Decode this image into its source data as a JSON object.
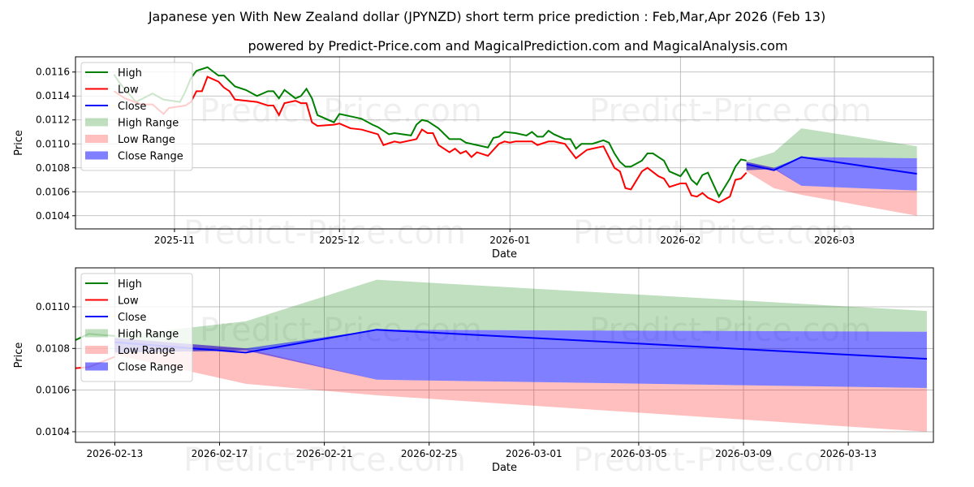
{
  "title": "Japanese yen With New Zealand dollar (JPYNZD) short term price prediction : Feb,Mar,Apr 2026 (Feb 13)",
  "subtitle": "powered by Predict-Price.com and MagicalPrediction.com and MagicalAnalysis.com",
  "watermark": "Predict-Price.com",
  "colors": {
    "high": "#008000",
    "low": "#ff0000",
    "close": "#0000ff",
    "high_range": "#008000",
    "low_range": "#ff0000",
    "close_range": "#0000ff"
  },
  "chart_data": [
    {
      "type": "line",
      "xlabel": "Date",
      "ylabel": "Price",
      "xlim": [
        "2025-10-14",
        "2026-03-19"
      ],
      "ylim": [
        0.01029,
        0.011727
      ],
      "xticks": [
        "2025-11-01",
        "2025-12-01",
        "2026-01-01",
        "2026-02-01",
        "2026-03-01"
      ],
      "xtick_labels": [
        "2025-11",
        "2025-12",
        "2026-01",
        "2026-02",
        "2026-03"
      ],
      "yticks": [
        "0.0104",
        "0.0106",
        "0.0108",
        "0.0110",
        "0.0112",
        "0.0114",
        "0.0116"
      ],
      "grid": true,
      "legend": {
        "placement": "top-left",
        "entries": [
          "High",
          "Low",
          "Close",
          "High Range",
          "Low Range",
          "Close Range"
        ]
      }
    },
    {
      "type": "line",
      "xlabel": "Date",
      "ylabel": "Price",
      "xlim": [
        "2026-02-11T12:00",
        "2026-03-16T06:00"
      ],
      "ylim": [
        0.010349,
        0.011187
      ],
      "xticks": [
        "2026-02-13",
        "2026-02-17",
        "2026-02-21",
        "2026-02-25",
        "2026-03-01",
        "2026-03-05",
        "2026-03-09",
        "2026-03-13"
      ],
      "xtick_labels": [
        "2026-02-13",
        "2026-02-17",
        "2026-02-21",
        "2026-02-25",
        "2026-03-01",
        "2026-03-05",
        "2026-03-09",
        "2026-03-13"
      ],
      "yticks": [
        "0.0104",
        "0.0106",
        "0.0108",
        "0.0110"
      ],
      "grid": true,
      "legend": {
        "placement": "top-left",
        "entries": [
          "High",
          "Low",
          "Close",
          "High Range",
          "Low Range",
          "Close Range"
        ]
      }
    }
  ],
  "series": {
    "high": [
      [
        "2025-10-21",
        0.01158
      ],
      [
        "2025-10-22",
        0.01151
      ],
      [
        "2025-10-25",
        0.01135
      ],
      [
        "2025-10-28",
        0.01142
      ],
      [
        "2025-10-30",
        0.01137
      ],
      [
        "2025-11-02",
        0.01135
      ],
      [
        "2025-11-03",
        0.01144
      ],
      [
        "2025-11-04",
        0.01155
      ],
      [
        "2025-11-05",
        0.01161
      ],
      [
        "2025-11-07",
        0.01164
      ],
      [
        "2025-11-09",
        0.01157
      ],
      [
        "2025-11-10",
        0.01157
      ],
      [
        "2025-11-12",
        0.01148
      ],
      [
        "2025-11-14",
        0.01145
      ],
      [
        "2025-11-16",
        0.0114
      ],
      [
        "2025-11-18",
        0.01144
      ],
      [
        "2025-11-19",
        0.01144
      ],
      [
        "2025-11-20",
        0.01138
      ],
      [
        "2025-11-21",
        0.01145
      ],
      [
        "2025-11-23",
        0.01138
      ],
      [
        "2025-11-24",
        0.0114
      ],
      [
        "2025-11-25",
        0.01146
      ],
      [
        "2025-11-26",
        0.01138
      ],
      [
        "2025-11-27",
        0.01124
      ],
      [
        "2025-11-30",
        0.01118
      ],
      [
        "2025-12-01",
        0.01125
      ],
      [
        "2025-12-03",
        0.01123
      ],
      [
        "2025-12-05",
        0.01121
      ],
      [
        "2025-12-07",
        0.01116
      ],
      [
        "2025-12-08",
        0.01114
      ],
      [
        "2025-12-10",
        0.01108
      ],
      [
        "2025-12-11",
        0.01109
      ],
      [
        "2025-12-14",
        0.01107
      ],
      [
        "2025-12-15",
        0.01116
      ],
      [
        "2025-12-16",
        0.0112
      ],
      [
        "2025-12-17",
        0.01119
      ],
      [
        "2025-12-19",
        0.01113
      ],
      [
        "2025-12-21",
        0.01104
      ],
      [
        "2025-12-23",
        0.01104
      ],
      [
        "2025-12-24",
        0.01101
      ],
      [
        "2025-12-28",
        0.01097
      ],
      [
        "2025-12-29",
        0.01105
      ],
      [
        "2025-12-30",
        0.01106
      ],
      [
        "2025-12-31",
        0.0111
      ],
      [
        "2026-01-02",
        0.01109
      ],
      [
        "2026-01-04",
        0.01107
      ],
      [
        "2026-01-05",
        0.0111
      ],
      [
        "2026-01-06",
        0.01106
      ],
      [
        "2026-01-07",
        0.01106
      ],
      [
        "2026-01-08",
        0.01111
      ],
      [
        "2026-01-09",
        0.01108
      ],
      [
        "2026-01-11",
        0.01104
      ],
      [
        "2026-01-12",
        0.01104
      ],
      [
        "2026-01-13",
        0.01096
      ],
      [
        "2026-01-14",
        0.011
      ],
      [
        "2026-01-16",
        0.011
      ],
      [
        "2026-01-18",
        0.01103
      ],
      [
        "2026-01-19",
        0.01101
      ],
      [
        "2026-01-20",
        0.01092
      ],
      [
        "2026-01-21",
        0.01085
      ],
      [
        "2026-01-22",
        0.01081
      ],
      [
        "2026-01-23",
        0.01081
      ],
      [
        "2026-01-25",
        0.01086
      ],
      [
        "2026-01-26",
        0.01092
      ],
      [
        "2026-01-27",
        0.01092
      ],
      [
        "2026-01-29",
        0.01086
      ],
      [
        "2026-01-30",
        0.01077
      ],
      [
        "2026-02-01",
        0.01073
      ],
      [
        "2026-02-02",
        0.01079
      ],
      [
        "2026-02-03",
        0.0107
      ],
      [
        "2026-02-04",
        0.01066
      ],
      [
        "2026-02-05",
        0.01074
      ],
      [
        "2026-02-06",
        0.01076
      ],
      [
        "2026-02-08",
        0.01056
      ],
      [
        "2026-02-10",
        0.01071
      ],
      [
        "2026-02-11",
        0.01081
      ],
      [
        "2026-02-12",
        0.01087
      ],
      [
        "2026-02-13",
        0.01086
      ]
    ],
    "low": [
      [
        "2025-10-21",
        0.01144
      ],
      [
        "2025-10-23",
        0.01138
      ],
      [
        "2025-10-26",
        0.01133
      ],
      [
        "2025-10-28",
        0.01133
      ],
      [
        "2025-10-30",
        0.01125
      ],
      [
        "2025-10-31",
        0.0113
      ],
      [
        "2025-11-03",
        0.01132
      ],
      [
        "2025-11-04",
        0.01135
      ],
      [
        "2025-11-05",
        0.01144
      ],
      [
        "2025-11-06",
        0.01144
      ],
      [
        "2025-11-07",
        0.01156
      ],
      [
        "2025-11-09",
        0.01152
      ],
      [
        "2025-11-10",
        0.01147
      ],
      [
        "2025-11-11",
        0.01144
      ],
      [
        "2025-11-12",
        0.01137
      ],
      [
        "2025-11-14",
        0.01136
      ],
      [
        "2025-11-16",
        0.01135
      ],
      [
        "2025-11-18",
        0.01132
      ],
      [
        "2025-11-19",
        0.01132
      ],
      [
        "2025-11-20",
        0.01124
      ],
      [
        "2025-11-21",
        0.01134
      ],
      [
        "2025-11-23",
        0.01136
      ],
      [
        "2025-11-24",
        0.01134
      ],
      [
        "2025-11-25",
        0.01134
      ],
      [
        "2025-11-26",
        0.01118
      ],
      [
        "2025-11-27",
        0.01115
      ],
      [
        "2025-11-30",
        0.01116
      ],
      [
        "2025-12-01",
        0.01117
      ],
      [
        "2025-12-03",
        0.01113
      ],
      [
        "2025-12-05",
        0.01112
      ],
      [
        "2025-12-08",
        0.01108
      ],
      [
        "2025-12-09",
        0.01099
      ],
      [
        "2025-12-11",
        0.01102
      ],
      [
        "2025-12-12",
        0.01101
      ],
      [
        "2025-12-15",
        0.01104
      ],
      [
        "2025-12-16",
        0.01112
      ],
      [
        "2025-12-17",
        0.01109
      ],
      [
        "2025-12-18",
        0.01109
      ],
      [
        "2025-12-19",
        0.01099
      ],
      [
        "2025-12-21",
        0.01093
      ],
      [
        "2025-12-22",
        0.01096
      ],
      [
        "2025-12-23",
        0.01092
      ],
      [
        "2025-12-24",
        0.01094
      ],
      [
        "2025-12-25",
        0.01089
      ],
      [
        "2025-12-26",
        0.01093
      ],
      [
        "2025-12-28",
        0.0109
      ],
      [
        "2025-12-30",
        0.011
      ],
      [
        "2025-12-31",
        0.01102
      ],
      [
        "2026-01-01",
        0.01101
      ],
      [
        "2026-01-02",
        0.01102
      ],
      [
        "2026-01-05",
        0.01102
      ],
      [
        "2026-01-06",
        0.01099
      ],
      [
        "2026-01-08",
        0.01102
      ],
      [
        "2026-01-09",
        0.01102
      ],
      [
        "2026-01-11",
        0.011
      ],
      [
        "2026-01-13",
        0.01088
      ],
      [
        "2026-01-15",
        0.01095
      ],
      [
        "2026-01-16",
        0.01096
      ],
      [
        "2026-01-18",
        0.01098
      ],
      [
        "2026-01-20",
        0.0108
      ],
      [
        "2026-01-21",
        0.01077
      ],
      [
        "2026-01-22",
        0.01063
      ],
      [
        "2026-01-23",
        0.01062
      ],
      [
        "2026-01-25",
        0.01077
      ],
      [
        "2026-01-26",
        0.0108
      ],
      [
        "2026-01-28",
        0.01073
      ],
      [
        "2026-01-29",
        0.01071
      ],
      [
        "2026-01-30",
        0.01064
      ],
      [
        "2026-02-01",
        0.01067
      ],
      [
        "2026-02-02",
        0.01067
      ],
      [
        "2026-02-03",
        0.01057
      ],
      [
        "2026-02-04",
        0.01056
      ],
      [
        "2026-02-05",
        0.01059
      ],
      [
        "2026-02-06",
        0.01055
      ],
      [
        "2026-02-08",
        0.01051
      ],
      [
        "2026-02-10",
        0.01056
      ],
      [
        "2026-02-11",
        0.0107
      ],
      [
        "2026-02-12",
        0.01071
      ],
      [
        "2026-02-13",
        0.01076
      ]
    ],
    "forecast_dates": [
      "2026-02-13",
      "2026-02-18",
      "2026-02-23",
      "2026-03-16"
    ],
    "close": [
      0.01083,
      0.01078,
      0.01089,
      0.01075
    ],
    "high_range": {
      "lower": [
        0.01078,
        0.01079,
        0.01089,
        0.01088
      ],
      "upper": [
        0.01086,
        0.01093,
        0.01113,
        0.01098
      ]
    },
    "low_range": {
      "lower": [
        0.01077,
        0.01063,
        0.010575,
        0.0104
      ],
      "upper": [
        0.01085,
        0.0108,
        0.01065,
        0.01061
      ]
    },
    "close_range": {
      "lower": [
        0.01078,
        0.01079,
        0.01065,
        0.01061
      ],
      "upper": [
        0.01085,
        0.0108,
        0.01089,
        0.01088
      ]
    }
  }
}
